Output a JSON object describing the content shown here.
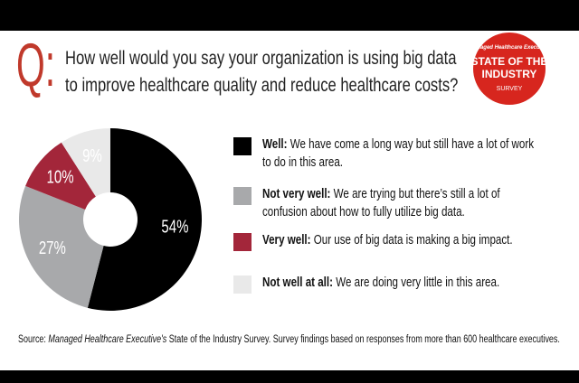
{
  "chart_data": {
    "type": "pie",
    "title": "How well would you say your organization is using big data to improve healthcare quality and reduce healthcare costs?",
    "question_mark": "Q:",
    "categories": [
      "Well:",
      "Not very well:",
      "Very well:",
      "Not well at all:"
    ],
    "descriptions": [
      "We have come a long way but still have a lot of work to do in this area.",
      "We are trying but there’s still a lot of confusion about how to fully utilize big data.",
      "Our use of big data is making a big impact.",
      "We are doing very little in this area."
    ],
    "values": [
      54,
      27,
      10,
      9
    ],
    "value_labels": [
      "54%",
      "27%",
      "10%",
      "9%"
    ],
    "colors": [
      "#000000",
      "#a8a9ab",
      "#a3263a",
      "#e9e9e9"
    ],
    "badge": {
      "top": "Managed Healthcare Executive",
      "lines": [
        "STATE OF THE",
        "INDUSTRY"
      ],
      "bottom": "SURVEY"
    },
    "source": {
      "prefix": "Source:",
      "publication": "Managed Healthcare Executive's",
      "rest": "State of the Industry Survey. Survey findings based on responses from more than 600 healthcare executives."
    }
  }
}
